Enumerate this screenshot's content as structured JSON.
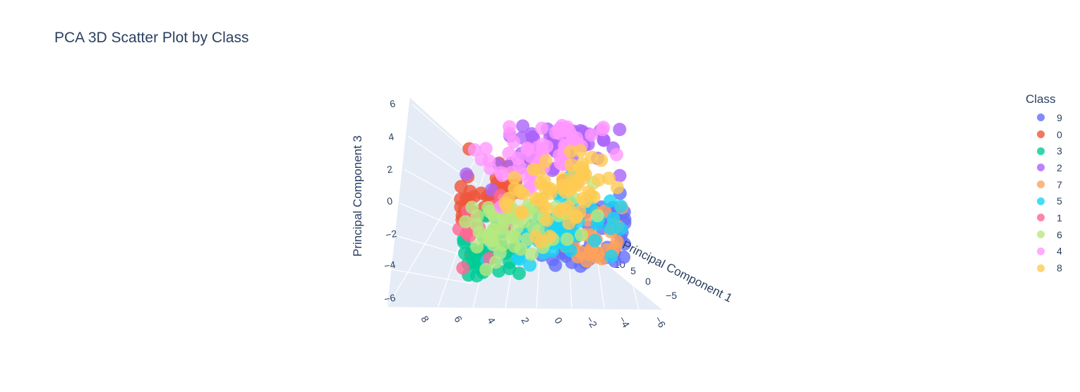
{
  "chart_data": {
    "type": "scatter",
    "subtype": "3d",
    "title": "PCA 3D Scatter Plot by Class",
    "x_axis": {
      "label": "Principal Component 1",
      "ticks": [
        "10",
        "5",
        "0",
        "−5"
      ],
      "range": [
        -9,
        14
      ]
    },
    "y_axis": {
      "label": "",
      "ticks": [
        "8",
        "6",
        "4",
        "2",
        "0",
        "−2",
        "−4",
        "−6"
      ],
      "range": [
        -7,
        9
      ]
    },
    "z_axis": {
      "label": "Principal Component 3",
      "ticks": [
        "6",
        "4",
        "2",
        "0",
        "−2",
        "−4",
        "−6"
      ],
      "range": [
        -7,
        7
      ]
    },
    "legend": {
      "title": "Class",
      "placement": "right"
    },
    "background_color": "#e5ecf6",
    "series": [
      {
        "name": "9",
        "color": "#636efa",
        "centroid": [
          -1.5,
          5.0,
          -3.0
        ]
      },
      {
        "name": "0",
        "color": "#EF553B",
        "centroid": [
          6.0,
          -2.5,
          1.5
        ]
      },
      {
        "name": "3",
        "color": "#00cc96",
        "centroid": [
          5.0,
          -3.5,
          -2.5
        ]
      },
      {
        "name": "2",
        "color": "#ab63fa",
        "centroid": [
          -0.5,
          1.0,
          3.5
        ]
      },
      {
        "name": "7",
        "color": "#FFA15A",
        "centroid": [
          -3.0,
          6.0,
          -3.0
        ]
      },
      {
        "name": "5",
        "color": "#19d3f3",
        "centroid": [
          1.0,
          1.5,
          -2.2
        ]
      },
      {
        "name": "1",
        "color": "#FF6692",
        "centroid": [
          7.5,
          -3.0,
          0.0
        ]
      },
      {
        "name": "6",
        "color": "#B6E880",
        "centroid": [
          3.0,
          -1.0,
          -1.5
        ]
      },
      {
        "name": "4",
        "color": "#FF97FF",
        "centroid": [
          0.5,
          0.5,
          3.2
        ]
      },
      {
        "name": "8",
        "color": "#FECB52",
        "centroid": [
          0.5,
          2.0,
          0.3
        ]
      }
    ]
  }
}
